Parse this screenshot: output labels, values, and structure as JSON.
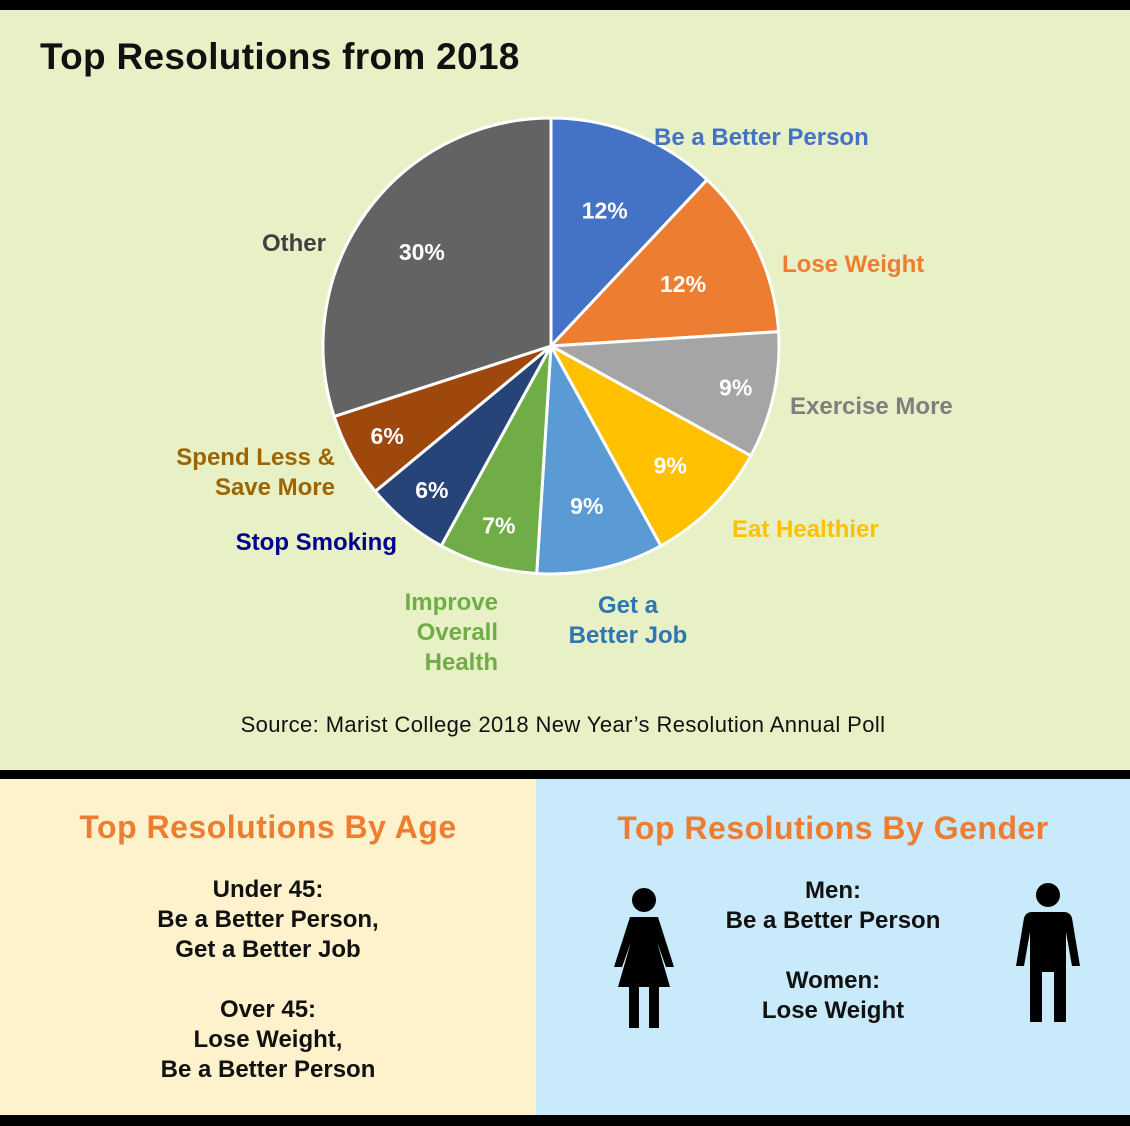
{
  "chart_data": {
    "type": "pie",
    "title": "Top Resolutions from 2018",
    "slices": [
      {
        "label": "Be a Better Person",
        "value": 12,
        "value_label": "12%",
        "color": "#4472c4",
        "label_color": "#4472c4"
      },
      {
        "label": "Lose Weight",
        "value": 12,
        "value_label": "12%",
        "color": "#ed7d31",
        "label_color": "#ed7d31"
      },
      {
        "label": "Exercise More",
        "value": 9,
        "value_label": "9%",
        "color": "#a5a5a5",
        "label_color": "#7f7f7f"
      },
      {
        "label": "Eat Healthier",
        "value": 9,
        "value_label": "9%",
        "color": "#ffc000",
        "label_color": "#ffc000"
      },
      {
        "label": "Get a Better Job",
        "value": 9,
        "value_label": "9%",
        "color": "#5b9bd5",
        "label_color": "#2e75b6"
      },
      {
        "label": "Improve Overall Health",
        "value": 7,
        "value_label": "7%",
        "color": "#70ad47",
        "label_color": "#70ad47"
      },
      {
        "label": "Stop Smoking",
        "value": 6,
        "value_label": "6%",
        "color": "#264478",
        "label_color": "#00008b"
      },
      {
        "label": "Spend Less & Save More",
        "value": 6,
        "value_label": "6%",
        "color": "#9e480e",
        "label_color": "#9c6500"
      },
      {
        "label": "Other",
        "value": 30,
        "value_label": "30%",
        "color": "#636363",
        "label_color": "#404040"
      }
    ]
  },
  "source": "Source: Marist College 2018 New Year’s Resolution Annual Poll",
  "age_section": {
    "heading": "Top Resolutions By Age",
    "groups": [
      {
        "name": "Under 45:",
        "lines": [
          "Be a Better Person,",
          "Get a Better Job"
        ]
      },
      {
        "name": "Over 45:",
        "lines": [
          "Lose Weight,",
          "Be a Better Person"
        ]
      }
    ]
  },
  "gender_section": {
    "heading": "Top Resolutions By Gender",
    "groups": [
      {
        "name": "Men:",
        "lines": [
          "Be a Better Person"
        ]
      },
      {
        "name": "Women:",
        "lines": [
          "Lose Weight"
        ]
      }
    ],
    "icons": [
      "woman-icon",
      "man-icon"
    ]
  },
  "colors": {
    "top_bg": "#e8f0c6",
    "age_bg": "#fef2cc",
    "gender_bg": "#c9eafa",
    "heading_accent": "#ed7d31"
  }
}
